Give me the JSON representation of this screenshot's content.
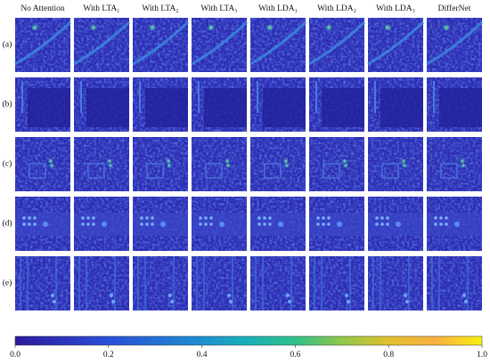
{
  "columns": [
    "No Attention",
    "With LTA₁",
    "With LTA₂",
    "With LTA₃",
    "With LDA₁",
    "With LDA₂",
    "With LDA₃",
    "DifferNet"
  ],
  "rows": [
    "(a)",
    "(b)",
    "(c)",
    "(d)",
    "(e)"
  ],
  "colorbar": {
    "range": [
      0,
      1
    ],
    "ticks": [
      {
        "value": 0,
        "label": "0.0"
      },
      0.2,
      0.4,
      0.6,
      0.8,
      {
        "value": 1,
        "label": "1.0"
      }
    ]
  }
}
